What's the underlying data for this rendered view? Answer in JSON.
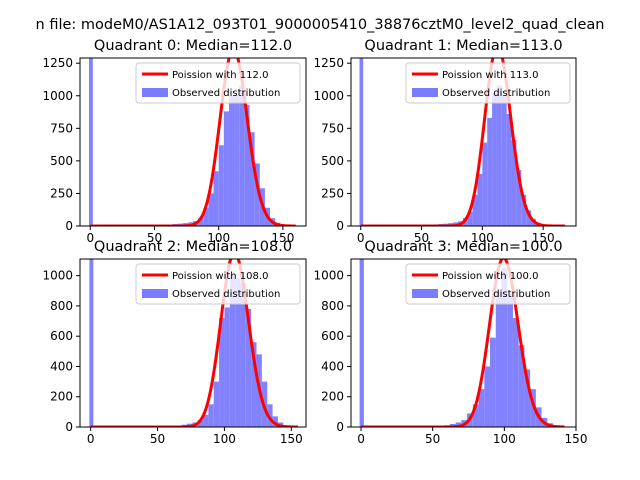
{
  "figure_title": "n file: modeM0/AS1A12_093T01_9000005410_38876cztM0_level2_quad_clean",
  "colors": {
    "hist": "#7b7bff",
    "poisson": "#ff0000",
    "axes": "#000000"
  },
  "chart_data": [
    {
      "type": "bar",
      "title": "Quadrant 0: Median=112.0",
      "median": 112.0,
      "xlim": [
        -8,
        168
      ],
      "ylim": [
        0,
        1290
      ],
      "xticks": [
        0,
        50,
        100,
        150
      ],
      "yticks": [
        0,
        250,
        500,
        750,
        1000,
        1250
      ],
      "legend_location": "upper right",
      "legend": [
        "Poission with 112.0",
        "Observed distribution"
      ],
      "series": [
        {
          "name": "Observed distribution",
          "bins": [
            [
              -1,
              2,
              1290
            ],
            [
              60,
              64,
              8
            ],
            [
              64,
              68,
              15
            ],
            [
              68,
              72,
              18
            ],
            [
              72,
              76,
              22
            ],
            [
              76,
              80,
              28
            ],
            [
              80,
              84,
              38
            ],
            [
              84,
              88,
              60
            ],
            [
              88,
              92,
              140
            ],
            [
              92,
              96,
              250
            ],
            [
              96,
              100,
              420
            ],
            [
              100,
              104,
              620
            ],
            [
              104,
              108,
              880
            ],
            [
              108,
              112,
              1000
            ],
            [
              112,
              116,
              1010
            ],
            [
              116,
              120,
              1080
            ],
            [
              120,
              124,
              930
            ],
            [
              124,
              128,
              720
            ],
            [
              128,
              132,
              480
            ],
            [
              132,
              136,
              290
            ],
            [
              136,
              140,
              140
            ],
            [
              140,
              144,
              60
            ],
            [
              144,
              148,
              25
            ],
            [
              148,
              152,
              10
            ],
            [
              152,
              156,
              5
            ]
          ]
        },
        {
          "name": "Poission with 112.0",
          "lambda": 112.0,
          "scale": 4.0,
          "total": 9000,
          "xrange": [
            0,
            160
          ]
        }
      ]
    },
    {
      "type": "bar",
      "title": "Quadrant 1: Median=113.0",
      "median": 113.0,
      "xlim": [
        -8,
        177
      ],
      "ylim": [
        0,
        1290
      ],
      "xticks": [
        0,
        50,
        100,
        150
      ],
      "yticks": [
        0,
        250,
        500,
        750,
        1000,
        1250
      ],
      "legend_location": "upper right",
      "legend": [
        "Poission with 113.0",
        "Observed distribution"
      ],
      "series": [
        {
          "name": "Observed distribution",
          "bins": [
            [
              -1,
              2,
              1290
            ],
            [
              52,
              56,
              8
            ],
            [
              56,
              60,
              10
            ],
            [
              60,
              64,
              12
            ],
            [
              64,
              68,
              15
            ],
            [
              68,
              72,
              18
            ],
            [
              72,
              76,
              22
            ],
            [
              76,
              80,
              28
            ],
            [
              80,
              84,
              36
            ],
            [
              84,
              88,
              60
            ],
            [
              88,
              92,
              110
            ],
            [
              92,
              96,
              240
            ],
            [
              96,
              100,
              400
            ],
            [
              100,
              104,
              640
            ],
            [
              104,
              108,
              830
            ],
            [
              108,
              112,
              1020
            ],
            [
              112,
              116,
              1080
            ],
            [
              116,
              120,
              1000
            ],
            [
              120,
              124,
              860
            ],
            [
              124,
              128,
              660
            ],
            [
              128,
              132,
              430
            ],
            [
              132,
              136,
              240
            ],
            [
              136,
              140,
              120
            ],
            [
              140,
              144,
              55
            ],
            [
              144,
              148,
              25
            ],
            [
              148,
              152,
              10
            ],
            [
              152,
              156,
              5
            ]
          ]
        },
        {
          "name": "Poission with 113.0",
          "lambda": 113.0,
          "scale": 4.0,
          "total": 9200,
          "xrange": [
            0,
            168
          ]
        }
      ]
    },
    {
      "type": "bar",
      "title": "Quadrant 2: Median=108.0",
      "median": 108.0,
      "xlim": [
        -8,
        161
      ],
      "ylim": [
        0,
        1110
      ],
      "xticks": [
        0,
        50,
        100,
        150
      ],
      "yticks": [
        0,
        200,
        400,
        600,
        800,
        1000
      ],
      "legend_location": "upper right",
      "legend": [
        "Poission with 108.0",
        "Observed distribution"
      ],
      "series": [
        {
          "name": "Observed distribution",
          "bins": [
            [
              -1,
              2,
              1110
            ],
            [
              64,
              68,
              10
            ],
            [
              68,
              72,
              15
            ],
            [
              72,
              76,
              22
            ],
            [
              76,
              80,
              30
            ],
            [
              80,
              84,
              45
            ],
            [
              84,
              88,
              80
            ],
            [
              88,
              92,
              150
            ],
            [
              92,
              96,
              300
            ],
            [
              96,
              100,
              720
            ],
            [
              100,
              104,
              790
            ],
            [
              104,
              108,
              1010
            ],
            [
              108,
              112,
              980
            ],
            [
              112,
              116,
              950
            ],
            [
              116,
              120,
              780
            ],
            [
              120,
              124,
              560
            ],
            [
              124,
              128,
              480
            ],
            [
              128,
              132,
              300
            ],
            [
              132,
              136,
              150
            ],
            [
              136,
              140,
              70
            ],
            [
              140,
              144,
              30
            ],
            [
              144,
              148,
              10
            ]
          ]
        },
        {
          "name": "Poission with 108.0",
          "lambda": 108.0,
          "scale": 4.0,
          "total": 7500,
          "xrange": [
            0,
            155
          ]
        }
      ]
    },
    {
      "type": "bar",
      "title": "Quadrant 3: Median=100.0",
      "median": 100.0,
      "xlim": [
        -7,
        150
      ],
      "ylim": [
        0,
        1110
      ],
      "xticks": [
        0,
        50,
        100,
        150
      ],
      "yticks": [
        0,
        200,
        400,
        600,
        800,
        1000
      ],
      "legend_location": "upper right",
      "legend": [
        "Poission with 100.0",
        "Observed distribution"
      ],
      "series": [
        {
          "name": "Observed distribution",
          "bins": [
            [
              -1,
              2,
              1110
            ],
            [
              54,
              58,
              8
            ],
            [
              58,
              62,
              12
            ],
            [
              62,
              66,
              20
            ],
            [
              66,
              70,
              30
            ],
            [
              70,
              74,
              45
            ],
            [
              74,
              78,
              90
            ],
            [
              78,
              82,
              150
            ],
            [
              82,
              86,
              250
            ],
            [
              86,
              90,
              400
            ],
            [
              90,
              94,
              590
            ],
            [
              94,
              98,
              900
            ],
            [
              98,
              102,
              1050
            ],
            [
              102,
              106,
              880
            ],
            [
              106,
              110,
              720
            ],
            [
              110,
              114,
              540
            ],
            [
              114,
              118,
              380
            ],
            [
              118,
              122,
              250
            ],
            [
              122,
              126,
              130
            ],
            [
              126,
              130,
              60
            ],
            [
              130,
              134,
              25
            ],
            [
              134,
              138,
              10
            ]
          ]
        },
        {
          "name": "Poission with 100.0",
          "lambda": 100.0,
          "scale": 4.0,
          "total": 7000,
          "xrange": [
            0,
            142
          ]
        }
      ]
    }
  ]
}
